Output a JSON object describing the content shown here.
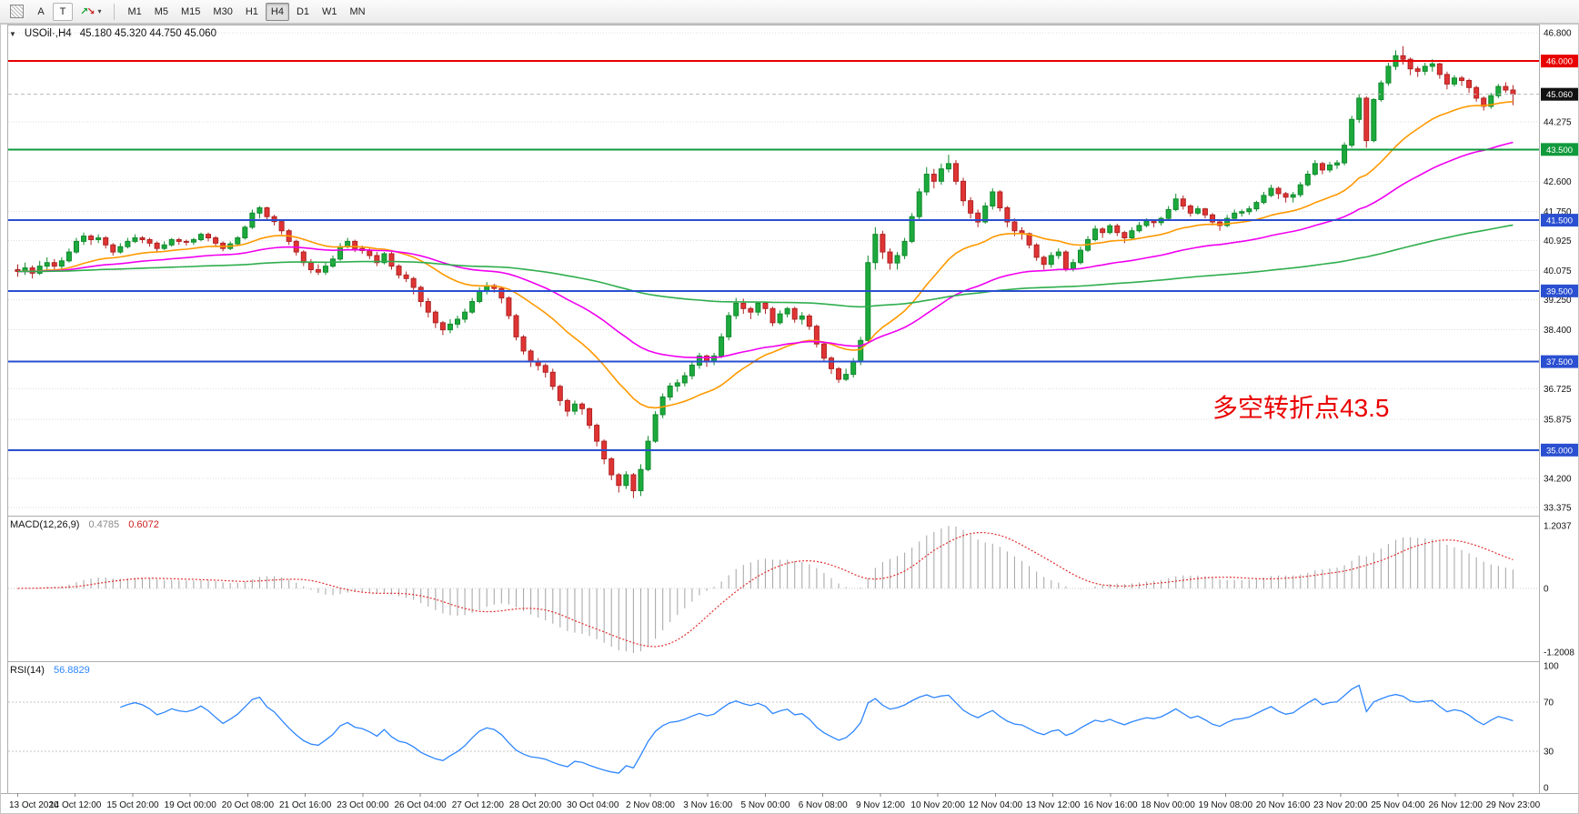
{
  "toolbar": {
    "tool_a": "A",
    "tool_t": "T",
    "dropdown_caret": "▾",
    "arrows_up_glyph": "↗",
    "arrows_down_glyph": "↘",
    "timeframes": [
      "M1",
      "M5",
      "M15",
      "M30",
      "H1",
      "H4",
      "D1",
      "W1",
      "MN"
    ],
    "active_timeframe": "H4"
  },
  "chart_data": {
    "type": "candlestick",
    "title": {
      "collapse_icon": "▼",
      "symbol_period": "USOil·,H4",
      "ohlc_text": "45.180 45.320 44.750 45.060"
    },
    "current_bar_ohlc": [
      45.18,
      45.32,
      44.75,
      45.06
    ],
    "price_axis": {
      "max": 46.8,
      "min": 33.375,
      "labels": [
        {
          "v": 46.8,
          "t": "46.800"
        },
        {
          "v": 44.275,
          "t": "44.275"
        },
        {
          "v": 42.6,
          "t": "42.600"
        },
        {
          "v": 41.75,
          "t": "41.750"
        },
        {
          "v": 40.925,
          "t": "40.925"
        },
        {
          "v": 40.075,
          "t": "40.075"
        },
        {
          "v": 39.25,
          "t": "39.250"
        },
        {
          "v": 38.4,
          "t": "38.400"
        },
        {
          "v": 36.725,
          "t": "36.725"
        },
        {
          "v": 35.875,
          "t": "35.875"
        },
        {
          "v": 34.2,
          "t": "34.200"
        },
        {
          "v": 33.375,
          "t": "33.375"
        }
      ]
    },
    "badges": [
      {
        "v": 46.0,
        "t": "46.000",
        "bg": "#e80000",
        "line": true
      },
      {
        "v": 45.06,
        "t": "45.060",
        "bg": "#111111",
        "line": false,
        "current": true
      },
      {
        "v": 43.5,
        "t": "43.500",
        "bg": "#119a3c",
        "line": true
      },
      {
        "v": 41.5,
        "t": "41.500",
        "bg": "#2a4fd0",
        "line": true
      },
      {
        "v": 39.5,
        "t": "39.500",
        "bg": "#2a4fd0",
        "line": true
      },
      {
        "v": 37.5,
        "t": "37.500",
        "bg": "#2a4fd0",
        "line": true
      },
      {
        "v": 35.0,
        "t": "35.000",
        "bg": "#2a4fd0",
        "line": true
      }
    ],
    "colors": {
      "up": "#1caa3c",
      "up_border": "#0f8a2c",
      "down": "#e03434",
      "down_border": "#b02222",
      "grid": "#dedede"
    },
    "moving_averages": [
      {
        "period": 24,
        "color": "#ff9900"
      },
      {
        "period": 55,
        "color": "#f000f0"
      },
      {
        "period": 200,
        "color": "#2fae4e"
      }
    ],
    "candles": [
      [
        40.1,
        40.25,
        39.9,
        40.05
      ],
      [
        40.05,
        40.3,
        39.95,
        40.15
      ],
      [
        40.15,
        40.22,
        39.85,
        40.0
      ],
      [
        40.0,
        40.35,
        39.95,
        40.2
      ],
      [
        40.2,
        40.45,
        40.1,
        40.3
      ],
      [
        40.3,
        40.4,
        40.05,
        40.2
      ],
      [
        40.2,
        40.45,
        40.1,
        40.35
      ],
      [
        40.35,
        40.7,
        40.3,
        40.6
      ],
      [
        40.6,
        41.0,
        40.55,
        40.9
      ],
      [
        40.9,
        41.15,
        40.8,
        41.05
      ],
      [
        41.05,
        41.1,
        40.8,
        40.95
      ],
      [
        40.95,
        41.1,
        40.85,
        41.0
      ],
      [
        41.0,
        41.05,
        40.7,
        40.8
      ],
      [
        40.8,
        40.85,
        40.5,
        40.6
      ],
      [
        40.6,
        40.85,
        40.55,
        40.75
      ],
      [
        40.75,
        41.0,
        40.7,
        40.9
      ],
      [
        40.9,
        41.1,
        40.85,
        41.0
      ],
      [
        41.0,
        41.05,
        40.85,
        40.95
      ],
      [
        40.95,
        41.0,
        40.75,
        40.85
      ],
      [
        40.85,
        40.9,
        40.6,
        40.7
      ],
      [
        40.7,
        40.9,
        40.65,
        40.8
      ],
      [
        40.8,
        41.0,
        40.75,
        40.95
      ],
      [
        40.95,
        41.0,
        40.8,
        40.9
      ],
      [
        40.9,
        40.95,
        40.78,
        40.88
      ],
      [
        40.88,
        41.0,
        40.8,
        40.95
      ],
      [
        40.95,
        41.15,
        40.9,
        41.1
      ],
      [
        41.1,
        41.15,
        40.9,
        41.0
      ],
      [
        41.0,
        41.05,
        40.78,
        40.85
      ],
      [
        40.85,
        40.9,
        40.62,
        40.7
      ],
      [
        40.7,
        40.9,
        40.65,
        40.83
      ],
      [
        40.83,
        41.05,
        40.78,
        41.0
      ],
      [
        41.0,
        41.35,
        40.95,
        41.3
      ],
      [
        41.3,
        41.8,
        41.25,
        41.7
      ],
      [
        41.7,
        41.9,
        41.55,
        41.85
      ],
      [
        41.85,
        41.88,
        41.5,
        41.6
      ],
      [
        41.6,
        41.65,
        41.35,
        41.46
      ],
      [
        41.46,
        41.5,
        41.1,
        41.2
      ],
      [
        41.2,
        41.25,
        40.8,
        40.9
      ],
      [
        40.9,
        40.95,
        40.5,
        40.6
      ],
      [
        40.6,
        40.65,
        40.2,
        40.3
      ],
      [
        40.3,
        40.4,
        40.0,
        40.1
      ],
      [
        40.1,
        40.25,
        39.95,
        40.03
      ],
      [
        40.03,
        40.3,
        39.95,
        40.2
      ],
      [
        40.2,
        40.5,
        40.15,
        40.4
      ],
      [
        40.4,
        40.85,
        40.35,
        40.75
      ],
      [
        40.75,
        41.0,
        40.7,
        40.9
      ],
      [
        40.9,
        40.95,
        40.6,
        40.7
      ],
      [
        40.7,
        40.78,
        40.55,
        40.64
      ],
      [
        40.64,
        40.7,
        40.4,
        40.5
      ],
      [
        40.5,
        40.6,
        40.2,
        40.3
      ],
      [
        40.3,
        40.6,
        40.25,
        40.55
      ],
      [
        40.55,
        40.6,
        40.1,
        40.2
      ],
      [
        40.2,
        40.25,
        39.85,
        39.95
      ],
      [
        39.95,
        40.05,
        39.75,
        39.85
      ],
      [
        39.85,
        39.9,
        39.4,
        39.6
      ],
      [
        39.6,
        39.65,
        39.05,
        39.2
      ],
      [
        39.2,
        39.3,
        38.75,
        38.9
      ],
      [
        38.9,
        38.95,
        38.45,
        38.6
      ],
      [
        38.6,
        38.65,
        38.25,
        38.4
      ],
      [
        38.4,
        38.7,
        38.3,
        38.56
      ],
      [
        38.56,
        38.8,
        38.45,
        38.7
      ],
      [
        38.7,
        39.0,
        38.6,
        38.9
      ],
      [
        38.9,
        39.3,
        38.85,
        39.2
      ],
      [
        39.2,
        39.6,
        39.15,
        39.5
      ],
      [
        39.5,
        39.75,
        39.4,
        39.65
      ],
      [
        39.65,
        39.7,
        39.45,
        39.57
      ],
      [
        39.57,
        39.6,
        39.15,
        39.3
      ],
      [
        39.3,
        39.35,
        38.7,
        38.8
      ],
      [
        38.8,
        38.85,
        38.1,
        38.2
      ],
      [
        38.2,
        38.25,
        37.7,
        37.8
      ],
      [
        37.8,
        37.85,
        37.35,
        37.5
      ],
      [
        37.5,
        37.6,
        37.25,
        37.39
      ],
      [
        37.39,
        37.45,
        37.05,
        37.2
      ],
      [
        37.2,
        37.3,
        36.7,
        36.8
      ],
      [
        36.8,
        36.85,
        36.25,
        36.4
      ],
      [
        36.4,
        36.45,
        35.95,
        36.1
      ],
      [
        36.1,
        36.4,
        36.0,
        36.3
      ],
      [
        36.3,
        36.35,
        36.0,
        36.17
      ],
      [
        36.17,
        36.2,
        35.6,
        35.7
      ],
      [
        35.7,
        35.75,
        35.1,
        35.25
      ],
      [
        35.25,
        35.3,
        34.6,
        34.75
      ],
      [
        34.75,
        34.8,
        34.15,
        34.3
      ],
      [
        34.3,
        34.35,
        33.8,
        34.0
      ],
      [
        34.0,
        34.4,
        33.9,
        34.3
      ],
      [
        34.3,
        34.35,
        33.64,
        33.85
      ],
      [
        33.85,
        34.6,
        33.7,
        34.45
      ],
      [
        34.45,
        35.4,
        34.4,
        35.25
      ],
      [
        35.25,
        36.1,
        35.2,
        36.0
      ],
      [
        36.0,
        36.6,
        35.9,
        36.5
      ],
      [
        36.5,
        36.9,
        36.4,
        36.81
      ],
      [
        36.81,
        37.0,
        36.65,
        36.9
      ],
      [
        36.9,
        37.2,
        36.8,
        37.1
      ],
      [
        37.1,
        37.5,
        37.0,
        37.4
      ],
      [
        37.4,
        37.75,
        37.3,
        37.66
      ],
      [
        37.66,
        37.7,
        37.35,
        37.5
      ],
      [
        37.5,
        37.75,
        37.4,
        37.66
      ],
      [
        37.66,
        38.3,
        37.6,
        38.2
      ],
      [
        38.2,
        38.9,
        38.1,
        38.8
      ],
      [
        38.8,
        39.3,
        38.7,
        39.15
      ],
      [
        39.15,
        39.28,
        38.85,
        39.0
      ],
      [
        39.0,
        39.05,
        38.7,
        38.9
      ],
      [
        38.9,
        39.2,
        38.8,
        39.15
      ],
      [
        39.15,
        39.2,
        38.85,
        39.0
      ],
      [
        39.0,
        39.05,
        38.5,
        38.6
      ],
      [
        38.6,
        38.95,
        38.55,
        38.85
      ],
      [
        38.85,
        39.05,
        38.75,
        39.0
      ],
      [
        39.0,
        39.05,
        38.6,
        38.7
      ],
      [
        38.7,
        38.9,
        38.55,
        38.79
      ],
      [
        38.79,
        38.85,
        38.4,
        38.5
      ],
      [
        38.5,
        38.55,
        37.9,
        38.0
      ],
      [
        38.0,
        38.05,
        37.5,
        37.6
      ],
      [
        37.6,
        37.65,
        37.15,
        37.3
      ],
      [
        37.3,
        37.35,
        36.9,
        37.0
      ],
      [
        37.0,
        37.3,
        36.95,
        37.14
      ],
      [
        37.14,
        37.6,
        37.05,
        37.5
      ],
      [
        37.5,
        38.2,
        37.4,
        38.1
      ],
      [
        38.1,
        40.5,
        38.05,
        40.3
      ],
      [
        40.3,
        41.3,
        40.1,
        41.1
      ],
      [
        41.1,
        41.2,
        40.4,
        40.6
      ],
      [
        40.6,
        40.7,
        40.1,
        40.29
      ],
      [
        40.29,
        40.6,
        40.1,
        40.5
      ],
      [
        40.5,
        41.0,
        40.4,
        40.9
      ],
      [
        40.9,
        41.7,
        40.85,
        41.6
      ],
      [
        41.6,
        42.4,
        41.5,
        42.3
      ],
      [
        42.3,
        43.0,
        42.2,
        42.8
      ],
      [
        42.8,
        42.95,
        42.4,
        42.6
      ],
      [
        42.6,
        43.1,
        42.5,
        42.95
      ],
      [
        42.95,
        43.35,
        42.85,
        43.1
      ],
      [
        43.1,
        43.2,
        42.5,
        42.6
      ],
      [
        42.6,
        42.7,
        41.9,
        42.05
      ],
      [
        42.05,
        42.15,
        41.55,
        41.7
      ],
      [
        41.7,
        41.8,
        41.3,
        41.45
      ],
      [
        41.45,
        42.0,
        41.4,
        41.9
      ],
      [
        41.9,
        42.4,
        41.8,
        42.3
      ],
      [
        42.3,
        42.35,
        41.75,
        41.85
      ],
      [
        41.85,
        41.9,
        41.3,
        41.45
      ],
      [
        41.45,
        41.55,
        41.05,
        41.2
      ],
      [
        41.2,
        41.3,
        40.95,
        41.12
      ],
      [
        41.12,
        41.15,
        40.7,
        40.8
      ],
      [
        40.8,
        40.85,
        40.35,
        40.45
      ],
      [
        40.45,
        40.5,
        40.1,
        40.25
      ],
      [
        40.25,
        40.6,
        40.15,
        40.5
      ],
      [
        40.5,
        40.7,
        40.4,
        40.6
      ],
      [
        40.6,
        40.65,
        40.05,
        40.13
      ],
      [
        40.13,
        40.4,
        40.05,
        40.3
      ],
      [
        40.3,
        40.75,
        40.25,
        40.65
      ],
      [
        40.65,
        41.05,
        40.6,
        40.95
      ],
      [
        40.95,
        41.35,
        40.9,
        41.25
      ],
      [
        41.25,
        41.3,
        41.0,
        41.15
      ],
      [
        41.15,
        41.4,
        41.1,
        41.34
      ],
      [
        41.34,
        41.4,
        41.05,
        41.15
      ],
      [
        41.15,
        41.2,
        40.85,
        41.0
      ],
      [
        41.0,
        41.3,
        40.95,
        41.2
      ],
      [
        41.2,
        41.45,
        41.15,
        41.35
      ],
      [
        41.35,
        41.55,
        41.3,
        41.48
      ],
      [
        41.48,
        41.52,
        41.3,
        41.43
      ],
      [
        41.43,
        41.6,
        41.35,
        41.55
      ],
      [
        41.55,
        41.9,
        41.5,
        41.8
      ],
      [
        41.8,
        42.25,
        41.75,
        42.1
      ],
      [
        42.1,
        42.2,
        41.8,
        41.9
      ],
      [
        41.9,
        41.95,
        41.6,
        41.7
      ],
      [
        41.7,
        41.9,
        41.65,
        41.82
      ],
      [
        41.82,
        41.85,
        41.55,
        41.65
      ],
      [
        41.65,
        41.7,
        41.35,
        41.45
      ],
      [
        41.45,
        41.5,
        41.2,
        41.35
      ],
      [
        41.35,
        41.65,
        41.3,
        41.55
      ],
      [
        41.55,
        41.8,
        41.5,
        41.7
      ],
      [
        41.7,
        41.8,
        41.6,
        41.74
      ],
      [
        41.74,
        41.9,
        41.65,
        41.82
      ],
      [
        41.82,
        42.05,
        41.75,
        42.0
      ],
      [
        42.0,
        42.3,
        41.95,
        42.2
      ],
      [
        42.2,
        42.5,
        42.15,
        42.4
      ],
      [
        42.4,
        42.45,
        42.1,
        42.25
      ],
      [
        42.25,
        42.3,
        42.0,
        42.15
      ],
      [
        42.15,
        42.3,
        42.0,
        42.22
      ],
      [
        42.22,
        42.58,
        42.15,
        42.5
      ],
      [
        42.5,
        42.9,
        42.45,
        42.8
      ],
      [
        42.8,
        43.2,
        42.75,
        43.1
      ],
      [
        43.1,
        43.15,
        42.8,
        42.92
      ],
      [
        42.92,
        43.15,
        42.85,
        43.06
      ],
      [
        43.06,
        43.2,
        42.95,
        43.12
      ],
      [
        43.12,
        43.7,
        43.05,
        43.62
      ],
      [
        43.62,
        44.45,
        43.55,
        44.35
      ],
      [
        44.35,
        45.05,
        44.25,
        44.95
      ],
      [
        44.95,
        45.0,
        43.55,
        43.75
      ],
      [
        43.75,
        44.95,
        43.7,
        44.91
      ],
      [
        44.91,
        45.45,
        44.85,
        45.38
      ],
      [
        45.38,
        45.95,
        45.3,
        45.85
      ],
      [
        45.85,
        46.3,
        45.75,
        46.15
      ],
      [
        46.15,
        46.42,
        45.9,
        46.05
      ],
      [
        46.05,
        46.1,
        45.6,
        45.78
      ],
      [
        45.78,
        45.85,
        45.55,
        45.71
      ],
      [
        45.71,
        45.95,
        45.6,
        45.85
      ],
      [
        45.85,
        46.05,
        45.7,
        45.92
      ],
      [
        45.92,
        45.95,
        45.5,
        45.62
      ],
      [
        45.62,
        45.7,
        45.2,
        45.35
      ],
      [
        45.35,
        45.6,
        45.28,
        45.52
      ],
      [
        45.52,
        45.58,
        45.3,
        45.45
      ],
      [
        45.45,
        45.5,
        45.1,
        45.25
      ],
      [
        45.25,
        45.3,
        44.85,
        44.95
      ],
      [
        44.95,
        45.0,
        44.6,
        44.72
      ],
      [
        44.72,
        45.1,
        44.65,
        45.02
      ],
      [
        45.02,
        45.35,
        44.95,
        45.28
      ],
      [
        45.28,
        45.4,
        45.1,
        45.18
      ],
      [
        45.18,
        45.32,
        44.75,
        45.06
      ]
    ],
    "time_labels": [
      "13 Oct 2020",
      "14 Oct 12:00",
      "15 Oct 20:00",
      "19 Oct 00:00",
      "20 Oct 08:00",
      "21 Oct 16:00",
      "23 Oct 00:00",
      "26 Oct 04:00",
      "27 Oct 12:00",
      "28 Oct 20:00",
      "30 Oct 04:00",
      "2 Nov 08:00",
      "3 Nov 16:00",
      "5 Nov 00:00",
      "6 Nov 08:00",
      "9 Nov 12:00",
      "10 Nov 20:00",
      "12 Nov 04:00",
      "13 Nov 12:00",
      "16 Nov 16:00",
      "18 Nov 00:00",
      "19 Nov 08:00",
      "20 Nov 16:00",
      "23 Nov 20:00",
      "25 Nov 04:00",
      "26 Nov 12:00",
      "29 Nov 23:00"
    ],
    "macd": {
      "label": "MACD(12,26,9)",
      "fast": 12,
      "slow": 26,
      "signal": 9,
      "main_value": "0.4785",
      "signal_value": "0.6072",
      "axis_labels": [
        "1.2037",
        "0",
        "-1.2008"
      ],
      "hist_color": "#ababab",
      "signal_color": "#e03030"
    },
    "rsi": {
      "label": "RSI(14)",
      "period": 14,
      "value": "56.8829",
      "axis": [
        "100",
        "70",
        "30",
        "0"
      ],
      "levels": [
        70,
        30
      ],
      "color": "#2e86ff"
    },
    "annotation": {
      "text": "多空转折点43.5",
      "color": "#ea0000"
    }
  }
}
